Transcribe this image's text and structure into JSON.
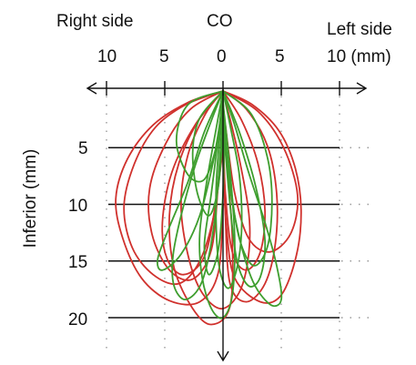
{
  "colors": {
    "red_traces": "#d0312d",
    "green_traces": "#3e9e2e",
    "axes": "#111111",
    "grid_dots": "#9a9a9a"
  },
  "chart_data": {
    "type": "line",
    "title": "",
    "header": {
      "left": "Right side",
      "center": "CO",
      "right": "Left side"
    },
    "xlabel": "",
    "ylabel": "Inferior (mm)",
    "x_tick_labels": [
      "10",
      "5",
      "0",
      "5",
      "10 (mm)"
    ],
    "x_tick_values": [
      -10,
      -5,
      0,
      5,
      10
    ],
    "y_tick_labels": [
      "5",
      "10",
      "15",
      "20"
    ],
    "y_tick_values": [
      5,
      10,
      15,
      20
    ],
    "xlim": [
      -10,
      10
    ],
    "ylim": [
      0,
      21
    ],
    "grid": "dotted vertical and horizontal at 5 mm steps; solid horizontal lines at 5, 10, 15, 20",
    "series": [
      {
        "color": "red",
        "traces": [
          [
            [
              0,
              0
            ],
            [
              -3,
              1
            ],
            [
              -6,
              3
            ],
            [
              -8.2,
              6
            ],
            [
              -9.2,
              9.5
            ],
            [
              -8.6,
              13
            ],
            [
              -7,
              16.5
            ],
            [
              -4.6,
              18.5
            ],
            [
              -2,
              18.6
            ],
            [
              -0.4,
              16
            ],
            [
              0,
              10
            ]
          ],
          [
            [
              0,
              0
            ],
            [
              2.5,
              1.2
            ],
            [
              4.8,
              3.5
            ],
            [
              6.2,
              6.8
            ],
            [
              6.7,
              10.5
            ],
            [
              6.3,
              14.5
            ],
            [
              5,
              18
            ],
            [
              3.2,
              18.6
            ],
            [
              1,
              16.5
            ],
            [
              0.3,
              12
            ],
            [
              0,
              6
            ]
          ],
          [
            [
              0,
              0
            ],
            [
              -2.8,
              1.6
            ],
            [
              -4.9,
              4.6
            ],
            [
              -6.3,
              8.6
            ],
            [
              -6.1,
              12.6
            ],
            [
              -4.6,
              15.8
            ],
            [
              -2.6,
              16.6
            ],
            [
              -1,
              14
            ],
            [
              -0.4,
              8
            ],
            [
              0,
              2
            ]
          ],
          [
            [
              0,
              0
            ],
            [
              -1.5,
              2
            ],
            [
              -3,
              5.6
            ],
            [
              -3.6,
              10
            ],
            [
              -3,
              14.5
            ],
            [
              -1.8,
              17.8
            ],
            [
              0,
              19.2
            ],
            [
              1.7,
              17
            ],
            [
              2.3,
              12
            ],
            [
              1.4,
              6
            ],
            [
              0,
              0
            ]
          ],
          [
            [
              0,
              0
            ],
            [
              -3.2,
              1.2
            ],
            [
              -5.8,
              3.2
            ],
            [
              -7.6,
              6.4
            ],
            [
              -8.5,
              10.2
            ],
            [
              -7.8,
              13.8
            ],
            [
              -6,
              16.2
            ],
            [
              -3.8,
              17
            ],
            [
              -2,
              15
            ],
            [
              -0.8,
              11
            ],
            [
              0,
              5
            ]
          ],
          [
            [
              0,
              0
            ],
            [
              2,
              1.6
            ],
            [
              3.8,
              4.8
            ],
            [
              4.6,
              9
            ],
            [
              4.5,
              13.4
            ],
            [
              3.6,
              17
            ],
            [
              2,
              18.6
            ],
            [
              0.6,
              17
            ],
            [
              0.2,
              11
            ],
            [
              0,
              4
            ]
          ],
          [
            [
              0,
              0
            ],
            [
              -2,
              2.4
            ],
            [
              -3.8,
              6.4
            ],
            [
              -4.6,
              11
            ],
            [
              -4.2,
              15.6
            ],
            [
              -2.6,
              19.2
            ],
            [
              -1,
              20.6
            ],
            [
              0.6,
              19
            ],
            [
              0.8,
              13
            ],
            [
              0.3,
              6
            ],
            [
              0,
              1
            ]
          ],
          [
            [
              0,
              0
            ],
            [
              3,
              1.8
            ],
            [
              5.2,
              5
            ],
            [
              6.4,
              9.2
            ],
            [
              5.8,
              12.6
            ],
            [
              4,
              14.2
            ],
            [
              2.2,
              13
            ],
            [
              1,
              9
            ],
            [
              0.2,
              3
            ]
          ],
          [
            [
              0,
              0
            ],
            [
              -2.4,
              3
            ],
            [
              -4.4,
              7.2
            ],
            [
              -5.2,
              11.6
            ],
            [
              -4.8,
              14.8
            ],
            [
              -3.4,
              16.2
            ],
            [
              -1.6,
              14.6
            ],
            [
              -0.6,
              9.6
            ],
            [
              0,
              3.4
            ]
          ],
          [
            [
              0,
              0
            ],
            [
              1.6,
              2.6
            ],
            [
              3,
              6.4
            ],
            [
              3.6,
              10.6
            ],
            [
              3.2,
              14.2
            ],
            [
              2,
              15.8
            ],
            [
              0.8,
              14.2
            ],
            [
              0.2,
              9
            ],
            [
              0,
              3
            ]
          ]
        ]
      },
      {
        "color": "green",
        "traces": [
          [
            [
              0,
              0
            ],
            [
              -1,
              2.6
            ],
            [
              -2.4,
              6.6
            ],
            [
              -3.6,
              11
            ],
            [
              -4.3,
              14.6
            ],
            [
              -4.2,
              17.2
            ],
            [
              -3.2,
              18.4
            ],
            [
              -1.8,
              16.8
            ],
            [
              -0.8,
              12
            ],
            [
              -0.2,
              5
            ],
            [
              0,
              0
            ]
          ],
          [
            [
              0,
              0
            ],
            [
              1,
              3
            ],
            [
              2.2,
              7.2
            ],
            [
              3.6,
              11.6
            ],
            [
              4.6,
              15.4
            ],
            [
              5,
              18.4
            ],
            [
              4,
              18.8
            ],
            [
              2.4,
              16.4
            ],
            [
              1,
              11
            ],
            [
              0.2,
              5
            ],
            [
              0,
              0
            ]
          ],
          [
            [
              0,
              0
            ],
            [
              -0.6,
              3.4
            ],
            [
              -1.4,
              8
            ],
            [
              -2,
              12.6
            ],
            [
              -1.8,
              16.4
            ],
            [
              -1,
              19.2
            ],
            [
              0,
              20
            ],
            [
              0.8,
              18
            ],
            [
              1,
              13
            ],
            [
              0.6,
              7
            ],
            [
              0,
              1
            ]
          ],
          [
            [
              0,
              0
            ],
            [
              -1.6,
              3.6
            ],
            [
              -3,
              8
            ],
            [
              -4.6,
              12
            ],
            [
              -5.6,
              14.8
            ],
            [
              -5.2,
              15.8
            ],
            [
              -3.6,
              14.4
            ],
            [
              -2,
              11
            ],
            [
              -0.8,
              6
            ],
            [
              0,
              1
            ]
          ],
          [
            [
              0,
              0
            ],
            [
              1.4,
              3.6
            ],
            [
              2.8,
              8.4
            ],
            [
              3.6,
              13.2
            ],
            [
              3.2,
              16.4
            ],
            [
              2.2,
              17.2
            ],
            [
              1.2,
              15
            ],
            [
              0.6,
              10
            ],
            [
              0.1,
              4
            ]
          ],
          [
            [
              0,
              0
            ],
            [
              -0.4,
              4
            ],
            [
              -1,
              9
            ],
            [
              -1.6,
              13.6
            ],
            [
              -1.2,
              16.2
            ],
            [
              -0.4,
              14
            ],
            [
              0,
              9
            ],
            [
              0.1,
              3
            ]
          ],
          [
            [
              0,
              0
            ],
            [
              2.4,
              2
            ],
            [
              3.8,
              5.8
            ],
            [
              4.2,
              9.8
            ],
            [
              3.8,
              13.8
            ],
            [
              2.6,
              15.4
            ],
            [
              1.4,
              13
            ],
            [
              0.6,
              8
            ],
            [
              0,
              2
            ]
          ],
          [
            [
              0,
              0
            ],
            [
              -2,
              2.4
            ],
            [
              -2.6,
              5.4
            ],
            [
              -2.2,
              9
            ],
            [
              -1.2,
              11
            ],
            [
              -0.4,
              8.4
            ],
            [
              0,
              3.4
            ]
          ],
          [
            [
              0,
              0
            ],
            [
              0.6,
              3
            ],
            [
              1.4,
              7.4
            ],
            [
              1.6,
              12
            ],
            [
              1.2,
              15.6
            ],
            [
              0.4,
              17.4
            ],
            [
              -0.4,
              15
            ],
            [
              -0.6,
              9
            ],
            [
              -0.2,
              3
            ]
          ],
          [
            [
              0,
              0
            ],
            [
              -3,
              1.2
            ],
            [
              -4,
              4.4
            ],
            [
              -3,
              7.4
            ],
            [
              -1.6,
              7.8
            ],
            [
              -0.6,
              5
            ],
            [
              0,
              1.6
            ]
          ]
        ]
      }
    ]
  }
}
